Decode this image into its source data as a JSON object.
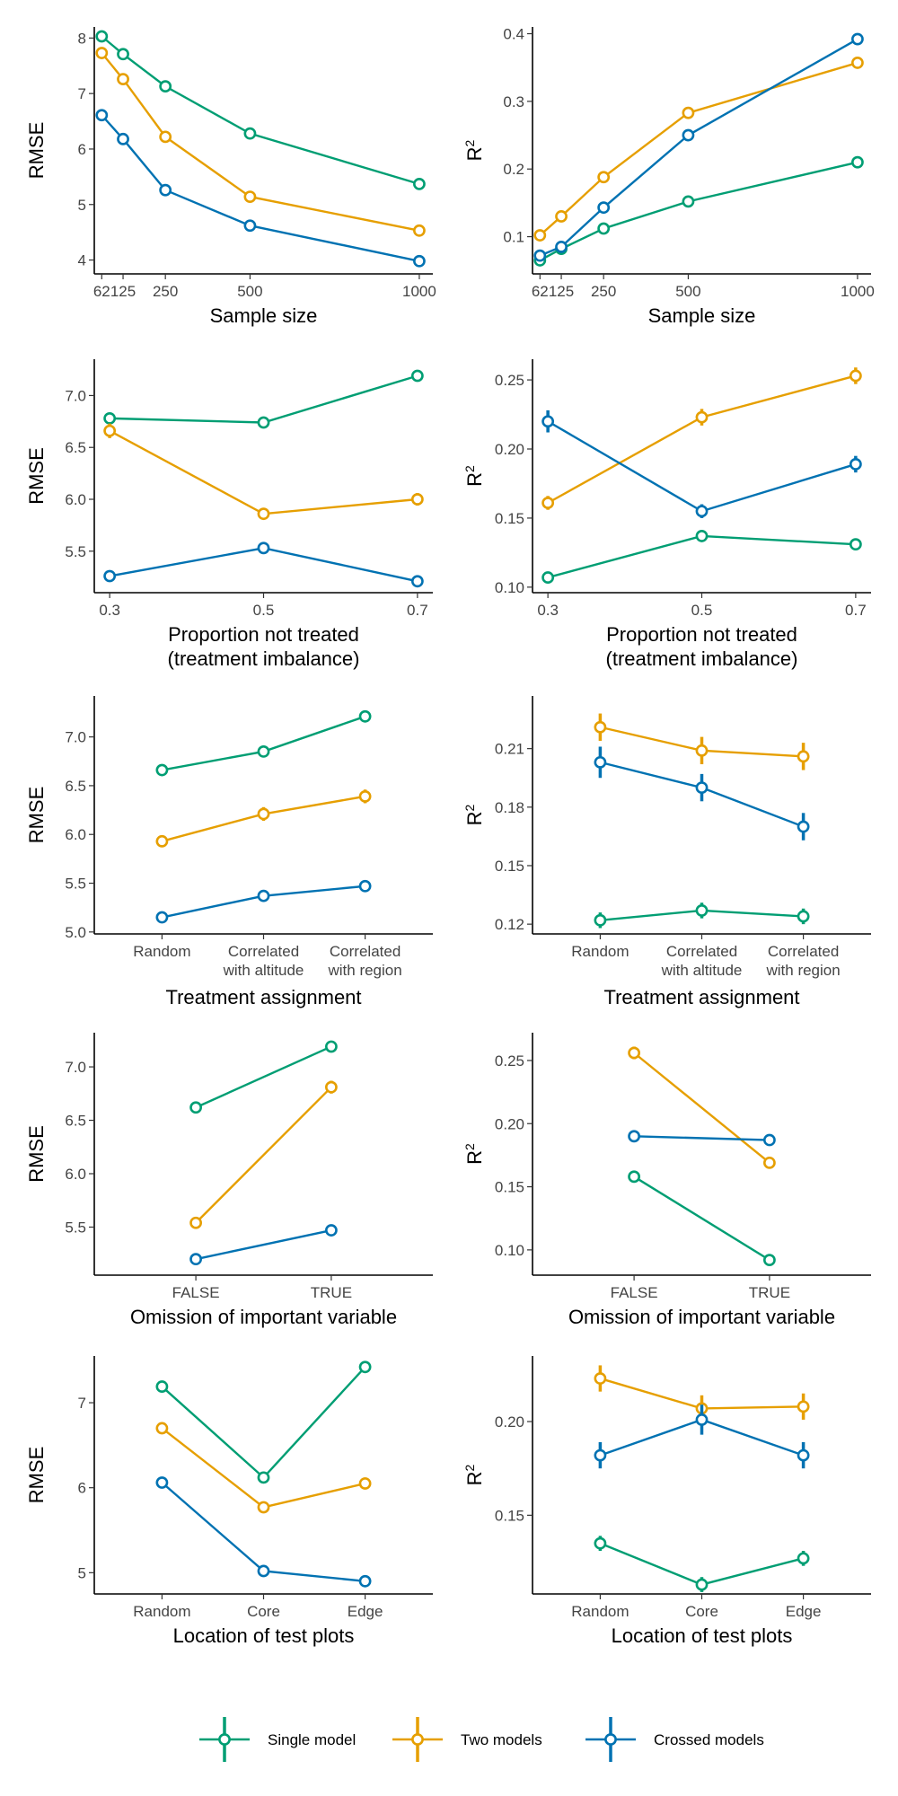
{
  "colors": {
    "single": "#009E73",
    "two": "#E69F00",
    "crossed": "#0072B2"
  },
  "legend": [
    {
      "key": "single",
      "label": "Single model"
    },
    {
      "key": "two",
      "label": "Two models"
    },
    {
      "key": "crossed",
      "label": "Crossed models"
    }
  ],
  "chart_data": [
    {
      "type": "line",
      "xlabel": [
        "Sample size"
      ],
      "ylabel": "RMSE",
      "xtype": "numeric",
      "x": [
        62,
        125,
        250,
        500,
        1000
      ],
      "xticks": [
        62,
        125,
        250,
        500,
        1000
      ],
      "xtick_labels": [
        "62",
        "125",
        "250",
        "500",
        "1000"
      ],
      "xlim": [
        40,
        1040
      ],
      "ylim": [
        3.75,
        8.2
      ],
      "yticks": [
        4,
        5,
        6,
        7,
        8
      ],
      "ytick_labels": [
        "4",
        "5",
        "6",
        "7",
        "8"
      ],
      "series": [
        {
          "key": "single",
          "values": [
            8.03,
            7.71,
            7.13,
            6.28,
            5.37
          ],
          "err": [
            0,
            0,
            0,
            0,
            0
          ]
        },
        {
          "key": "two",
          "values": [
            7.73,
            7.26,
            6.22,
            5.14,
            4.53
          ],
          "err": [
            0,
            0,
            0,
            0,
            0
          ]
        },
        {
          "key": "crossed",
          "values": [
            6.61,
            6.18,
            5.26,
            4.62,
            3.98
          ],
          "err": [
            0,
            0,
            0,
            0,
            0
          ]
        }
      ]
    },
    {
      "type": "line",
      "xlabel": [
        "Sample size"
      ],
      "ylabel": "R2",
      "xtype": "numeric",
      "x": [
        62,
        125,
        250,
        500,
        1000
      ],
      "xticks": [
        62,
        125,
        250,
        500,
        1000
      ],
      "xtick_labels": [
        "62",
        "125",
        "250",
        "500",
        "1000"
      ],
      "xlim": [
        40,
        1040
      ],
      "ylim": [
        0.045,
        0.41
      ],
      "yticks": [
        0.1,
        0.2,
        0.3,
        0.4
      ],
      "ytick_labels": [
        "0.1",
        "0.2",
        "0.3",
        "0.4"
      ],
      "series": [
        {
          "key": "single",
          "values": [
            0.065,
            0.082,
            0.112,
            0.152,
            0.21
          ],
          "err": [
            0,
            0,
            0,
            0,
            0
          ]
        },
        {
          "key": "two",
          "values": [
            0.102,
            0.13,
            0.188,
            0.283,
            0.357
          ],
          "err": [
            0,
            0,
            0,
            0,
            0
          ]
        },
        {
          "key": "crossed",
          "values": [
            0.072,
            0.085,
            0.143,
            0.25,
            0.392
          ],
          "err": [
            0,
            0,
            0,
            0,
            0
          ]
        }
      ]
    },
    {
      "type": "line",
      "xlabel": [
        "Proportion not treated",
        "(treatment imbalance)"
      ],
      "ylabel": "RMSE",
      "xtype": "numeric",
      "x": [
        0.3,
        0.5,
        0.7
      ],
      "xticks": [
        0.3,
        0.5,
        0.7
      ],
      "xtick_labels": [
        "0.3",
        "0.5",
        "0.7"
      ],
      "xlim": [
        0.28,
        0.72
      ],
      "ylim": [
        5.1,
        7.35
      ],
      "yticks": [
        5.5,
        6.0,
        6.5,
        7.0
      ],
      "ytick_labels": [
        "5.5",
        "6.0",
        "6.5",
        "7.0"
      ],
      "series": [
        {
          "key": "single",
          "values": [
            6.78,
            6.74,
            7.19
          ],
          "err": [
            0.02,
            0.02,
            0.02
          ]
        },
        {
          "key": "two",
          "values": [
            6.66,
            5.86,
            6.0
          ],
          "err": [
            0.07,
            0.05,
            0.06
          ]
        },
        {
          "key": "crossed",
          "values": [
            5.26,
            5.53,
            5.21
          ],
          "err": [
            0.04,
            0.05,
            0.03
          ]
        }
      ]
    },
    {
      "type": "line",
      "xlabel": [
        "Proportion not treated",
        "(treatment imbalance)"
      ],
      "ylabel": "R2",
      "xtype": "numeric",
      "x": [
        0.3,
        0.5,
        0.7
      ],
      "xticks": [
        0.3,
        0.5,
        0.7
      ],
      "xtick_labels": [
        "0.3",
        "0.5",
        "0.7"
      ],
      "xlim": [
        0.28,
        0.72
      ],
      "ylim": [
        0.096,
        0.265
      ],
      "yticks": [
        0.1,
        0.15,
        0.2,
        0.25
      ],
      "ytick_labels": [
        "0.10",
        "0.15",
        "0.20",
        "0.25"
      ],
      "series": [
        {
          "key": "single",
          "values": [
            0.107,
            0.137,
            0.131
          ],
          "err": [
            0.002,
            0.002,
            0.002
          ]
        },
        {
          "key": "two",
          "values": [
            0.161,
            0.223,
            0.253
          ],
          "err": [
            0.005,
            0.006,
            0.006
          ]
        },
        {
          "key": "crossed",
          "values": [
            0.22,
            0.155,
            0.189
          ],
          "err": [
            0.008,
            0.005,
            0.006
          ]
        }
      ]
    },
    {
      "type": "line",
      "xlabel": [
        "Treatment assignment"
      ],
      "ylabel": "RMSE",
      "xtype": "categorical",
      "categories": [
        "Random",
        "Correlated\nwith altitude",
        "Correlated\nwith region"
      ],
      "ylim": [
        4.98,
        7.42
      ],
      "yticks": [
        5.0,
        5.5,
        6.0,
        6.5,
        7.0
      ],
      "ytick_labels": [
        "5.0",
        "5.5",
        "6.0",
        "6.5",
        "7.0"
      ],
      "series": [
        {
          "key": "single",
          "values": [
            6.66,
            6.85,
            7.21
          ],
          "err": [
            0.02,
            0.02,
            0.02
          ]
        },
        {
          "key": "two",
          "values": [
            5.93,
            6.21,
            6.39
          ],
          "err": [
            0.06,
            0.07,
            0.07
          ]
        },
        {
          "key": "crossed",
          "values": [
            5.15,
            5.37,
            5.47
          ],
          "err": [
            0.03,
            0.04,
            0.05
          ]
        }
      ]
    },
    {
      "type": "line",
      "xlabel": [
        "Treatment assignment"
      ],
      "ylabel": "R2",
      "xtype": "categorical",
      "categories": [
        "Random",
        "Correlated\nwith altitude",
        "Correlated\nwith region"
      ],
      "ylim": [
        0.115,
        0.237
      ],
      "yticks": [
        0.12,
        0.15,
        0.18,
        0.21
      ],
      "ytick_labels": [
        "0.12",
        "0.15",
        "0.18",
        "0.21"
      ],
      "series": [
        {
          "key": "single",
          "values": [
            0.122,
            0.127,
            0.124
          ],
          "err": [
            0.004,
            0.004,
            0.004
          ]
        },
        {
          "key": "two",
          "values": [
            0.221,
            0.209,
            0.206
          ],
          "err": [
            0.007,
            0.007,
            0.007
          ]
        },
        {
          "key": "crossed",
          "values": [
            0.203,
            0.19,
            0.17
          ],
          "err": [
            0.008,
            0.007,
            0.007
          ]
        }
      ]
    },
    {
      "type": "line",
      "xlabel": [
        "Omission of important variable"
      ],
      "ylabel": "RMSE",
      "xtype": "categorical",
      "categories": [
        "FALSE",
        "TRUE"
      ],
      "ylim": [
        5.05,
        7.32
      ],
      "yticks": [
        5.5,
        6.0,
        6.5,
        7.0
      ],
      "ytick_labels": [
        "5.5",
        "6.0",
        "6.5",
        "7.0"
      ],
      "series": [
        {
          "key": "single",
          "values": [
            6.62,
            7.19
          ],
          "err": [
            0.02,
            0.02
          ]
        },
        {
          "key": "two",
          "values": [
            5.54,
            6.81
          ],
          "err": [
            0.03,
            0.06
          ]
        },
        {
          "key": "crossed",
          "values": [
            5.2,
            5.47
          ],
          "err": [
            0.02,
            0.02
          ]
        }
      ]
    },
    {
      "type": "line",
      "xlabel": [
        "Omission of important variable"
      ],
      "ylabel": "R2",
      "xtype": "categorical",
      "categories": [
        "FALSE",
        "TRUE"
      ],
      "ylim": [
        0.08,
        0.272
      ],
      "yticks": [
        0.1,
        0.15,
        0.2,
        0.25
      ],
      "ytick_labels": [
        "0.10",
        "0.15",
        "0.20",
        "0.25"
      ],
      "series": [
        {
          "key": "single",
          "values": [
            0.158,
            0.092
          ],
          "err": [
            0.002,
            0.002
          ]
        },
        {
          "key": "two",
          "values": [
            0.256,
            0.169
          ],
          "err": [
            0.005,
            0.002
          ]
        },
        {
          "key": "crossed",
          "values": [
            0.19,
            0.187
          ],
          "err": [
            0.004,
            0.004
          ]
        }
      ]
    },
    {
      "type": "line",
      "xlabel": [
        "Location of test plots"
      ],
      "ylabel": "RMSE",
      "xtype": "categorical",
      "categories": [
        "Random",
        "Core",
        "Edge"
      ],
      "ylim": [
        4.75,
        7.55
      ],
      "yticks": [
        5,
        6,
        7
      ],
      "ytick_labels": [
        "5",
        "6",
        "7"
      ],
      "series": [
        {
          "key": "single",
          "values": [
            7.19,
            6.12,
            7.42
          ],
          "err": [
            0.03,
            0.03,
            0.03
          ]
        },
        {
          "key": "two",
          "values": [
            6.7,
            5.77,
            6.05
          ],
          "err": [
            0.04,
            0.03,
            0.07
          ]
        },
        {
          "key": "crossed",
          "values": [
            6.06,
            5.02,
            4.9
          ],
          "err": [
            0.03,
            0.02,
            0.02
          ]
        }
      ]
    },
    {
      "type": "line",
      "xlabel": [
        "Location of test plots"
      ],
      "ylabel": "R2",
      "xtype": "categorical",
      "categories": [
        "Random",
        "Core",
        "Edge"
      ],
      "ylim": [
        0.108,
        0.235
      ],
      "yticks": [
        0.15,
        0.2
      ],
      "ytick_labels": [
        "0.15",
        "0.20"
      ],
      "series": [
        {
          "key": "single",
          "values": [
            0.135,
            0.113,
            0.127
          ],
          "err": [
            0.004,
            0.004,
            0.004
          ]
        },
        {
          "key": "two",
          "values": [
            0.223,
            0.207,
            0.208
          ],
          "err": [
            0.007,
            0.007,
            0.007
          ]
        },
        {
          "key": "crossed",
          "values": [
            0.182,
            0.201,
            0.182
          ],
          "err": [
            0.007,
            0.008,
            0.007
          ]
        }
      ]
    }
  ]
}
